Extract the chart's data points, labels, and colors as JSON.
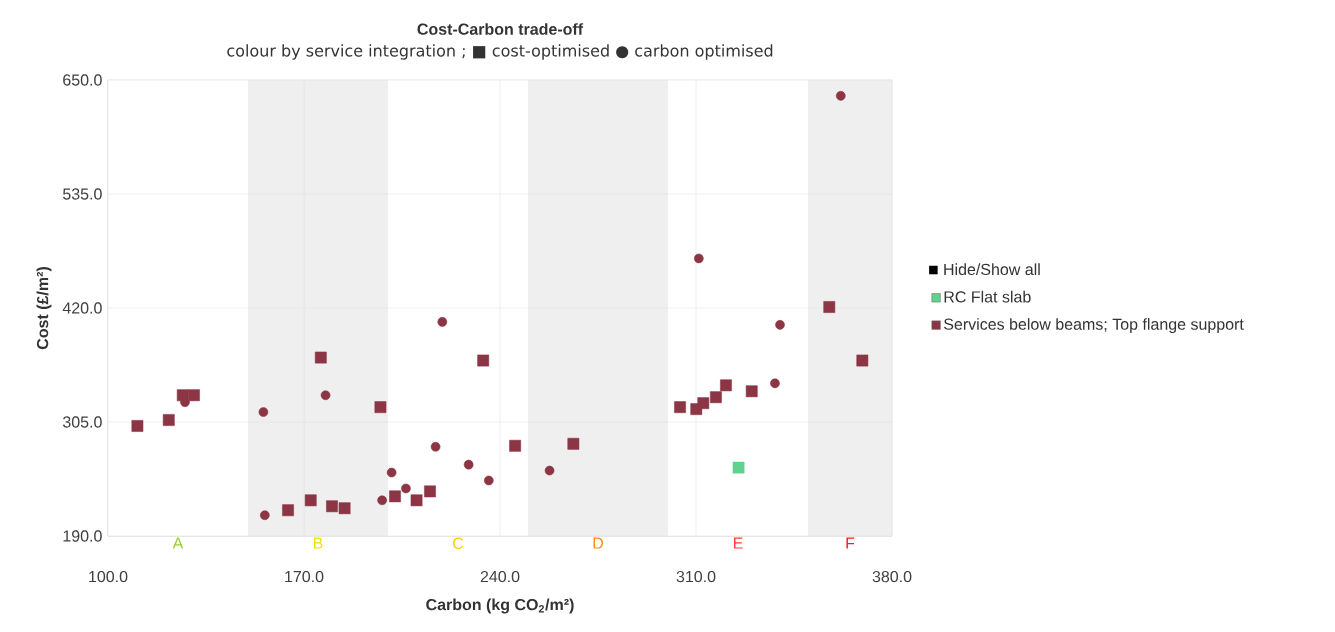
{
  "chart_data": {
    "type": "scatter",
    "title": "Cost-Carbon trade-off",
    "subtitle": "colour by service integration ;  ■ cost-optimised ● carbon optimised",
    "xlabel": "Carbon (kg CO$_{2}$/m²)",
    "ylabel": "Cost (£/m²)",
    "annotations": [
      "Hide/Show all"
    ],
    "xlim": [
      100,
      380
    ],
    "ylim": [
      190,
      650
    ],
    "xticks": [
      {
        "value": 100,
        "label": "100.0"
      },
      {
        "value": 170,
        "label": "170.0"
      },
      {
        "value": 240,
        "label": "240.0"
      },
      {
        "value": 310,
        "label": "310.0"
      },
      {
        "value": 380,
        "label": "380.0"
      }
    ],
    "yticks": [
      {
        "value": 190,
        "label": "190.0"
      },
      {
        "value": 305,
        "label": "305.0"
      },
      {
        "value": 420,
        "label": "420.0"
      },
      {
        "value": 535,
        "label": "535.0"
      },
      {
        "value": 650,
        "label": "650.0"
      }
    ],
    "grid": true,
    "legend": "right",
    "bands": [
      {
        "axis": "x",
        "from": 100,
        "to": 150,
        "label": "A",
        "color": "#ffffff"
      },
      {
        "axis": "x",
        "from": 150,
        "to": 200,
        "label": "B",
        "color": "#efefef"
      },
      {
        "axis": "x",
        "from": 200,
        "to": 250,
        "label": "C",
        "color": "#ffffff"
      },
      {
        "axis": "x",
        "from": 250,
        "to": 300,
        "label": "D",
        "color": "#efefef"
      },
      {
        "axis": "x",
        "from": 300,
        "to": 350,
        "label": "E",
        "color": "#ffffff"
      },
      {
        "axis": "x",
        "from": 350,
        "to": 380,
        "label": "F",
        "color": "#efefef"
      }
    ],
    "series": [
      {
        "name": "RC Flat slab",
        "color": "#5fd38d",
        "marker": "square",
        "x": [
          325.2
        ],
        "values": [
          259
        ]
      },
      {
        "name": "Services below beams; Top flange support",
        "color": "#8b3545",
        "marker": "square",
        "x": [
          110.5,
          121.7,
          126.7,
          130.7,
          176,
          197.3,
          164.3,
          172.4,
          180,
          184.5,
          202.5,
          210.2,
          215,
          234,
          245.4,
          266.2,
          304.3,
          310.1,
          312.6,
          317.1,
          320.7,
          329.9,
          357.6,
          369.4
        ],
        "values": [
          301,
          307,
          332,
          332,
          370,
          320,
          216,
          226,
          220,
          218,
          230,
          226,
          235,
          367,
          281,
          283,
          320,
          318,
          324,
          330,
          342,
          336,
          421,
          367
        ]
      },
      {
        "color": "#8b3545",
        "marker": "circle",
        "x": [
          127.5,
          155.5,
          177.7,
          156,
          219.4,
          201.3,
          206.4,
          197.9,
          217,
          228.8,
          236,
          257.7,
          361.7,
          311,
          340,
          338.2
        ],
        "values": [
          325,
          315,
          332,
          211,
          406,
          254,
          238,
          226,
          280,
          262,
          246,
          256,
          634,
          470,
          403,
          344
        ]
      }
    ]
  }
}
